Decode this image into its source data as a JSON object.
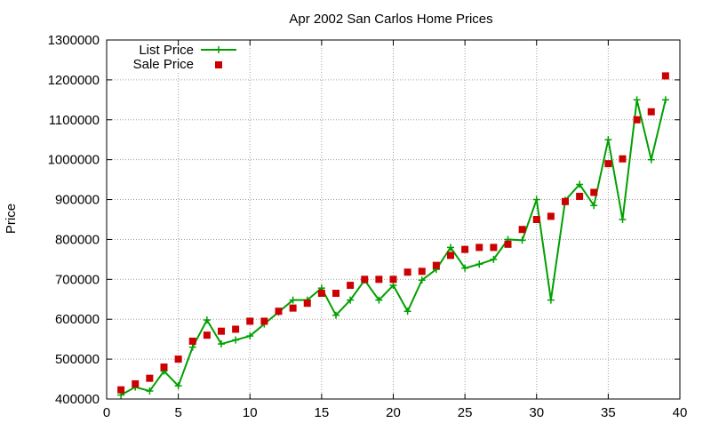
{
  "chart_data": {
    "type": "line",
    "title": "Apr 2002 San Carlos Home Prices",
    "xlabel": "",
    "ylabel": "Price",
    "xlim": [
      0,
      40
    ],
    "ylim": [
      400000,
      1300000
    ],
    "xticks": [
      0,
      5,
      10,
      15,
      20,
      25,
      30,
      35,
      40
    ],
    "yticks": [
      400000,
      500000,
      600000,
      700000,
      800000,
      900000,
      1000000,
      1100000,
      1200000,
      1300000
    ],
    "grid": true,
    "legend_position": "top-left",
    "x": [
      1,
      2,
      3,
      4,
      5,
      6,
      7,
      8,
      9,
      10,
      11,
      12,
      13,
      14,
      15,
      16,
      17,
      18,
      19,
      20,
      21,
      22,
      23,
      24,
      25,
      26,
      27,
      28,
      29,
      30,
      31,
      32,
      33,
      34,
      35,
      36,
      37,
      38,
      39
    ],
    "series": [
      {
        "name": "List Price",
        "style": "linespoints",
        "marker": "plus",
        "color": "#00a000",
        "values": [
          410000,
          430000,
          420000,
          470000,
          433000,
          530000,
          598000,
          538000,
          548000,
          558000,
          588000,
          618000,
          648000,
          648000,
          678000,
          610000,
          648000,
          698000,
          648000,
          685000,
          620000,
          698000,
          725000,
          780000,
          728000,
          738000,
          750000,
          800000,
          798000,
          900000,
          648000,
          898000,
          938000,
          885000,
          1050000,
          850000,
          1150000,
          1000000,
          1150000
        ]
      },
      {
        "name": "Sale Price",
        "style": "points",
        "marker": "square",
        "color": "#cc0000",
        "values": [
          423000,
          438000,
          452000,
          480000,
          500000,
          545000,
          560000,
          570000,
          575000,
          595000,
          595000,
          620000,
          628000,
          640000,
          665000,
          665000,
          685000,
          700000,
          700000,
          700000,
          718000,
          720000,
          735000,
          760000,
          775000,
          780000,
          780000,
          788000,
          825000,
          850000,
          858000,
          895000,
          908000,
          918000,
          990000,
          1002000,
          1100000,
          1120000,
          1210000
        ]
      }
    ]
  }
}
